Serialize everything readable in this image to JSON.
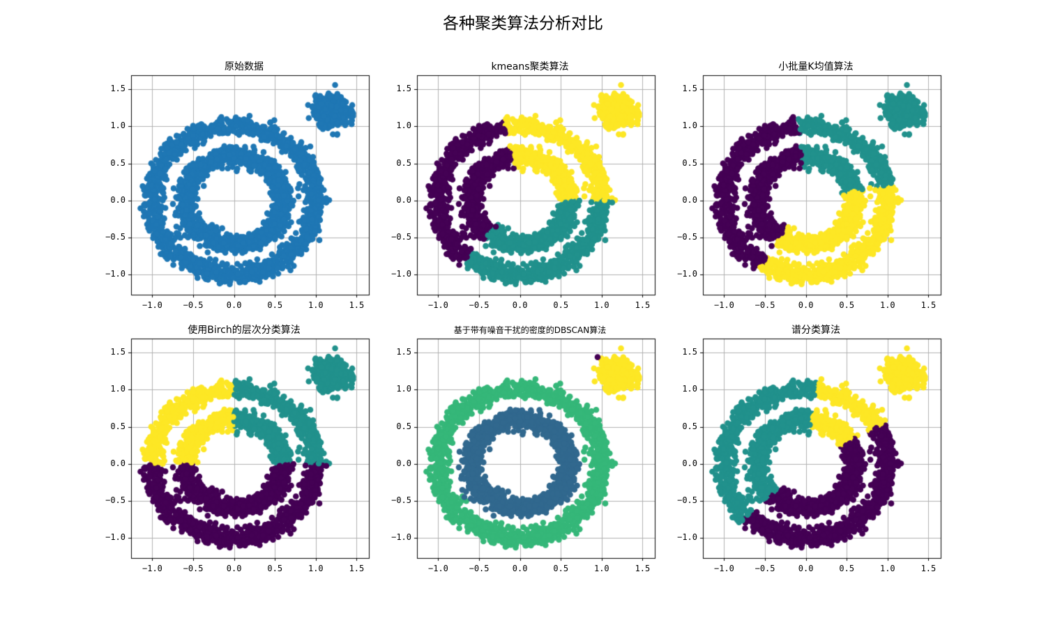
{
  "figure": {
    "suptitle": "各种聚类算法分析对比",
    "background": "#ffffff"
  },
  "chart_data": [
    {
      "type": "scatter",
      "title": "原始数据",
      "xlabel": "",
      "ylabel": "",
      "xlim": [
        -1.26,
        1.65
      ],
      "ylim": [
        -1.27,
        1.69
      ],
      "xticks": [
        "-1.0",
        "-0.5",
        "0.0",
        "0.5",
        "1.0",
        "1.5"
      ],
      "yticks": [
        "-1.0",
        "-0.5",
        "0.0",
        "0.5",
        "1.0",
        "1.5"
      ],
      "grid": true,
      "dataset": {
        "outer_ring": {
          "center": [
            0.0,
            0.0
          ],
          "radius": 1.0,
          "noise": 0.06
        },
        "inner_ring": {
          "center": [
            0.0,
            0.0
          ],
          "radius": 0.6,
          "noise": 0.06
        },
        "blob": {
          "center": [
            1.2,
            1.2
          ],
          "std": 0.1
        }
      },
      "coloring": "single",
      "colors": {
        "all": "#1f77b4"
      }
    },
    {
      "type": "scatter",
      "title": "kmeans聚类算法",
      "xlim": [
        -1.26,
        1.65
      ],
      "ylim": [
        -1.27,
        1.69
      ],
      "xticks": [
        "-1.0",
        "-0.5",
        "0.0",
        "0.5",
        "1.0",
        "1.5"
      ],
      "yticks": [
        "-1.0",
        "-0.5",
        "0.0",
        "0.5",
        "1.0",
        "1.5"
      ],
      "grid": true,
      "n_clusters": 3,
      "coloring": "kmeans",
      "clusters": [
        {
          "label": 0,
          "color": "#440154",
          "region": "left (angle 100°–230°)"
        },
        {
          "label": 1,
          "color": "#21918c",
          "region": "bottom-right (angle 230°–360°)"
        },
        {
          "label": 2,
          "color": "#fde725",
          "region": "top-right rings (0°–100°) + blob"
        }
      ]
    },
    {
      "type": "scatter",
      "title": "小批量K均值算法",
      "xlim": [
        -1.26,
        1.65
      ],
      "ylim": [
        -1.27,
        1.69
      ],
      "xticks": [
        "-1.0",
        "-0.5",
        "0.0",
        "0.5",
        "1.0",
        "1.5"
      ],
      "yticks": [
        "-1.0",
        "-0.5",
        "0.0",
        "0.5",
        "1.0",
        "1.5"
      ],
      "grid": true,
      "n_clusters": 3,
      "coloring": "minibatch",
      "clusters": [
        {
          "label": 0,
          "color": "#440154",
          "region": "left (angle 95°–235°)"
        },
        {
          "label": 1,
          "color": "#21918c",
          "region": "top-right rings (15°–95°) + blob"
        },
        {
          "label": 2,
          "color": "#fde725",
          "region": "bottom-right (235°–375°)"
        }
      ]
    },
    {
      "type": "scatter",
      "title": "使用Birch的层次分类算法",
      "xlim": [
        -1.26,
        1.65
      ],
      "ylim": [
        -1.27,
        1.69
      ],
      "xticks": [
        "-1.0",
        "-0.5",
        "0.0",
        "0.5",
        "1.0",
        "1.5"
      ],
      "yticks": [
        "-1.0",
        "-0.5",
        "0.0",
        "0.5",
        "1.0",
        "1.5"
      ],
      "grid": true,
      "n_clusters": 3,
      "coloring": "birch",
      "clusters": [
        {
          "label": 0,
          "color": "#440154",
          "region": "bottom half (y<0)"
        },
        {
          "label": 1,
          "color": "#21918c",
          "region": "top-right quadrant (x>0,y>0) + blob"
        },
        {
          "label": 2,
          "color": "#fde725",
          "region": "top-left quadrant (x<0,y>0)"
        }
      ]
    },
    {
      "type": "scatter",
      "title": "基于带有噪音干扰的密度的DBSCAN算法",
      "xlim": [
        -1.26,
        1.65
      ],
      "ylim": [
        -1.27,
        1.69
      ],
      "xticks": [
        "-1.0",
        "-0.5",
        "0.0",
        "0.5",
        "1.0",
        "1.5"
      ],
      "yticks": [
        "-1.0",
        "-0.5",
        "0.0",
        "0.5",
        "1.0",
        "1.5"
      ],
      "grid": true,
      "coloring": "dbscan",
      "clusters": [
        {
          "label": -1,
          "color": "#440154",
          "region": "noise point near (0.95, 1.44)"
        },
        {
          "label": 0,
          "color": "#31688e",
          "region": "inner ring"
        },
        {
          "label": 1,
          "color": "#35b779",
          "region": "outer ring"
        },
        {
          "label": 2,
          "color": "#fde725",
          "region": "blob"
        }
      ],
      "noise_points": [
        [
          0.95,
          1.44
        ]
      ]
    },
    {
      "type": "scatter",
      "title": "谱分类算法",
      "xlim": [
        -1.26,
        1.65
      ],
      "ylim": [
        -1.27,
        1.69
      ],
      "xticks": [
        "-1.0",
        "-0.5",
        "0.0",
        "0.5",
        "1.0",
        "1.5"
      ],
      "yticks": [
        "-1.0",
        "-0.5",
        "0.0",
        "0.5",
        "1.0",
        "1.5"
      ],
      "grid": true,
      "coloring": "spectral",
      "clusters": [
        {
          "label": 0,
          "color": "#440154",
          "region": "bottom-right (angle 225°–390°)"
        },
        {
          "label": 1,
          "color": "#21918c",
          "region": "top-left (angle 80°–225°)"
        },
        {
          "label": 2,
          "color": "#fde725",
          "region": "top-right rings (30°–80°) + blob"
        }
      ]
    }
  ]
}
